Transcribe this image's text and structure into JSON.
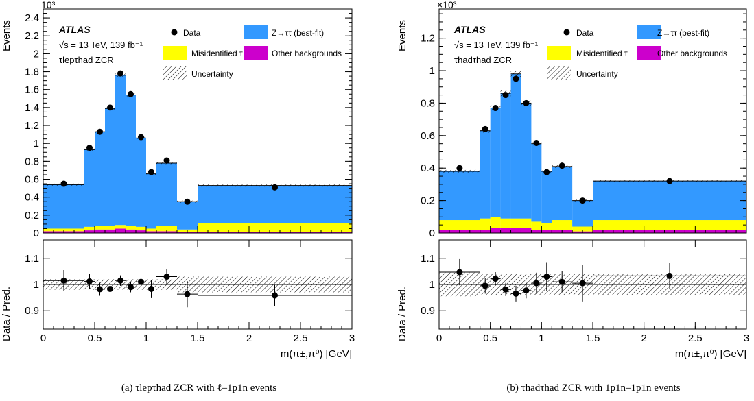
{
  "chart_data": [
    {
      "type": "histogram",
      "panel_caption": "(a) τlepτhad ZCR with ℓ–1p1n events",
      "exponent_label": "10³",
      "ylabel": "Events",
      "ratio_ylabel": "Data / Pred.",
      "xlabel": "m(π±,π⁰) [GeV]",
      "atlas_label": "ATLAS",
      "energy_label": "√s = 13 TeV, 139 fb⁻¹",
      "region_label": "τlepτhad ZCR",
      "legend": {
        "data": "Data",
        "ztt": "Z→ττ (best-fit)",
        "fake": "Misidentified τ",
        "other": "Other backgrounds",
        "unc": "Uncertainty"
      },
      "colors": {
        "ztt": "#3399ff",
        "fake": "#ffff00",
        "other": "#cc00cc"
      },
      "xlim": [
        0,
        3
      ],
      "ylim": [
        0,
        2.5
      ],
      "ratio_ylim": [
        0.83,
        1.17
      ],
      "x_ticks": [
        0,
        0.5,
        1,
        1.5,
        2,
        2.5,
        3
      ],
      "y_ticks": [
        0,
        0.2,
        0.4,
        0.6,
        0.8,
        1,
        1.2,
        1.4,
        1.6,
        1.8,
        2,
        2.2,
        2.4
      ],
      "ratio_ticks": [
        0.9,
        1,
        1.1
      ],
      "bins": [
        0,
        0.4,
        0.5,
        0.6,
        0.7,
        0.8,
        0.9,
        1.0,
        1.1,
        1.3,
        1.5,
        3.0
      ],
      "ztt": [
        0.49,
        0.86,
        1.05,
        1.31,
        1.67,
        1.46,
        0.99,
        0.61,
        0.7,
        0.31,
        0.42
      ],
      "fake": [
        0.03,
        0.04,
        0.04,
        0.04,
        0.04,
        0.04,
        0.04,
        0.03,
        0.06,
        0.03,
        0.1
      ],
      "other": [
        0.02,
        0.03,
        0.04,
        0.04,
        0.05,
        0.04,
        0.03,
        0.02,
        0.02,
        0.01,
        0.01
      ],
      "data_x": [
        0.2,
        0.45,
        0.55,
        0.65,
        0.75,
        0.85,
        0.95,
        1.05,
        1.2,
        1.4,
        2.25
      ],
      "data_y": [
        0.55,
        0.95,
        1.13,
        1.4,
        1.78,
        1.55,
        1.07,
        0.68,
        0.81,
        0.35,
        0.51
      ],
      "ratio": [
        1.015,
        1.012,
        0.982,
        0.983,
        1.015,
        0.99,
        1.01,
        0.983,
        1.03,
        0.963,
        0.958
      ],
      "ratio_err": [
        0.04,
        0.03,
        0.025,
        0.025,
        0.02,
        0.02,
        0.03,
        0.035,
        0.03,
        0.05,
        0.04
      ],
      "band": [
        0.02,
        0.02,
        0.02,
        0.02,
        0.02,
        0.02,
        0.02,
        0.02,
        0.02,
        0.03,
        0.03
      ]
    },
    {
      "type": "histogram",
      "panel_caption": "(b) τhadτhad ZCR with 1p1n–1p1n events",
      "exponent_label": "×10³",
      "ylabel": "Events",
      "ratio_ylabel": "Data / Pred.",
      "xlabel": "m(π±,π⁰) [GeV]",
      "atlas_label": "ATLAS",
      "energy_label": "√s = 13 TeV, 139 fb⁻¹",
      "region_label": "τhadτhad ZCR",
      "legend": {
        "data": "Data",
        "ztt": "Z→ττ (best-fit)",
        "fake": "Misidentified τ",
        "other": "Other backgrounds",
        "unc": "Uncertainty"
      },
      "colors": {
        "ztt": "#3399ff",
        "fake": "#ffff00",
        "other": "#cc00cc"
      },
      "xlim": [
        0,
        3
      ],
      "ylim": [
        0,
        1.38
      ],
      "ratio_ylim": [
        0.83,
        1.17
      ],
      "x_ticks": [
        0,
        0.5,
        1,
        1.5,
        2,
        2.5,
        3
      ],
      "y_ticks": [
        0,
        0.2,
        0.4,
        0.6,
        0.8,
        1,
        1.2
      ],
      "ratio_ticks": [
        0.9,
        1,
        1.1
      ],
      "bins": [
        0,
        0.4,
        0.5,
        0.6,
        0.7,
        0.8,
        0.9,
        1.0,
        1.1,
        1.3,
        1.5,
        3.0
      ],
      "ztt": [
        0.3,
        0.54,
        0.67,
        0.77,
        0.89,
        0.71,
        0.48,
        0.32,
        0.33,
        0.16,
        0.24
      ],
      "fake": [
        0.06,
        0.07,
        0.07,
        0.06,
        0.06,
        0.06,
        0.05,
        0.04,
        0.06,
        0.03,
        0.06
      ],
      "other": [
        0.02,
        0.02,
        0.03,
        0.03,
        0.03,
        0.03,
        0.02,
        0.02,
        0.02,
        0.01,
        0.02
      ],
      "data_x": [
        0.2,
        0.45,
        0.55,
        0.65,
        0.75,
        0.85,
        0.95,
        1.05,
        1.2,
        1.4,
        2.25
      ],
      "data_y": [
        0.4,
        0.64,
        0.77,
        0.85,
        0.95,
        0.8,
        0.555,
        0.375,
        0.415,
        0.2,
        0.32
      ],
      "ratio": [
        1.047,
        0.995,
        1.022,
        0.981,
        0.965,
        0.977,
        1.005,
        1.03,
        1.01,
        1.005,
        1.033
      ],
      "ratio_err": [
        0.05,
        0.03,
        0.025,
        0.025,
        0.03,
        0.03,
        0.04,
        0.055,
        0.04,
        0.07,
        0.05
      ],
      "band": [
        0.045,
        0.04,
        0.04,
        0.04,
        0.04,
        0.04,
        0.04,
        0.04,
        0.04,
        0.04,
        0.04
      ]
    }
  ]
}
